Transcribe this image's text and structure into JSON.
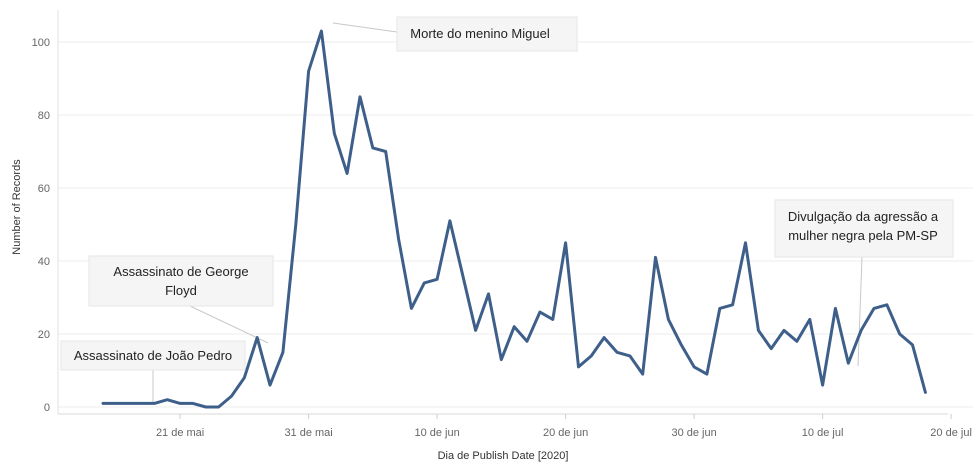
{
  "chart_data": {
    "type": "line",
    "xlabel": "Dia de Publish Date [2020]",
    "ylabel": "Number of Records",
    "ylim": [
      0,
      105
    ],
    "yticks": [
      0,
      20,
      40,
      60,
      80,
      100
    ],
    "x_start_day": 15,
    "xlim_days": [
      10,
      62
    ],
    "xticks": [
      {
        "day": 21,
        "label": "21 de mai"
      },
      {
        "day": 31,
        "label": "31 de mai"
      },
      {
        "day": 41,
        "label": "10 de jun"
      },
      {
        "day": 51,
        "label": "20 de jun"
      },
      {
        "day": 61,
        "label": "30 de jun"
      },
      {
        "day": 71,
        "label": "10 de jul"
      },
      {
        "day": 81,
        "label": "20 de jul"
      }
    ],
    "grid": true,
    "line_color": "#3e5f8a",
    "values": [
      1,
      1,
      1,
      1,
      1,
      2,
      1,
      1,
      0,
      0,
      3,
      8,
      19,
      6,
      15,
      50,
      92,
      103,
      75,
      64,
      85,
      71,
      70,
      46,
      27,
      34,
      35,
      51,
      36,
      21,
      31,
      13,
      22,
      18,
      26,
      24,
      45,
      11,
      14,
      19,
      15,
      14,
      9,
      41,
      24,
      17,
      11,
      9,
      27,
      28,
      45,
      21,
      16,
      21,
      18,
      24,
      6,
      27,
      12,
      21,
      27,
      28,
      20,
      17,
      4
    ],
    "annotations": [
      {
        "text": [
          "Assassinato de João Pedro"
        ],
        "day": 18
      },
      {
        "text": [
          "Assassinato de George",
          "Floyd"
        ],
        "day": 27
      },
      {
        "text": [
          "Morte do menino Miguel"
        ],
        "day": 32
      },
      {
        "text": [
          "Divulgação da agressão a",
          "mulher negra pela PM-SP"
        ],
        "day": 73
      }
    ]
  }
}
